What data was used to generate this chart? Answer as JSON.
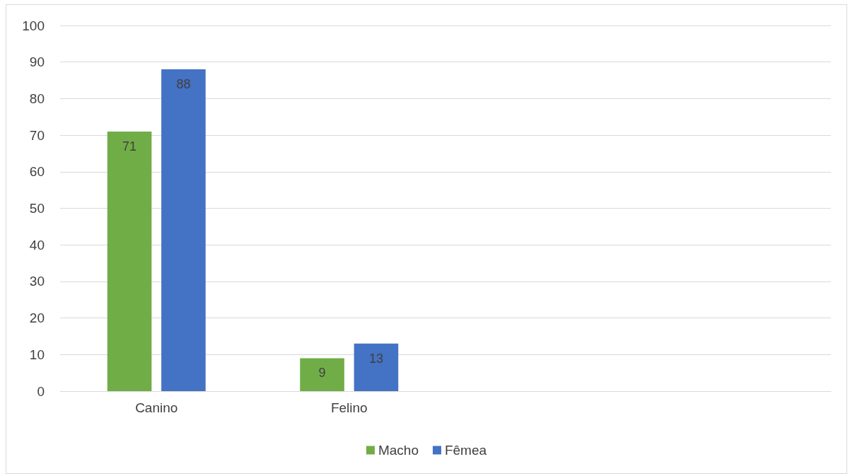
{
  "chart_data": {
    "type": "bar",
    "categories": [
      "Canino",
      "Felino",
      null,
      null
    ],
    "series": [
      {
        "name": "Macho",
        "color": "#70ad47",
        "values": [
          71,
          9,
          null,
          null
        ]
      },
      {
        "name": "Fêmea",
        "color": "#4472c4",
        "values": [
          88,
          13,
          null,
          null
        ]
      }
    ],
    "ylim": [
      0,
      100
    ],
    "yticks": [
      0,
      10,
      20,
      30,
      40,
      50,
      60,
      70,
      80,
      90,
      100
    ],
    "grid": "y",
    "legend": "bottom",
    "data_labels": true
  }
}
